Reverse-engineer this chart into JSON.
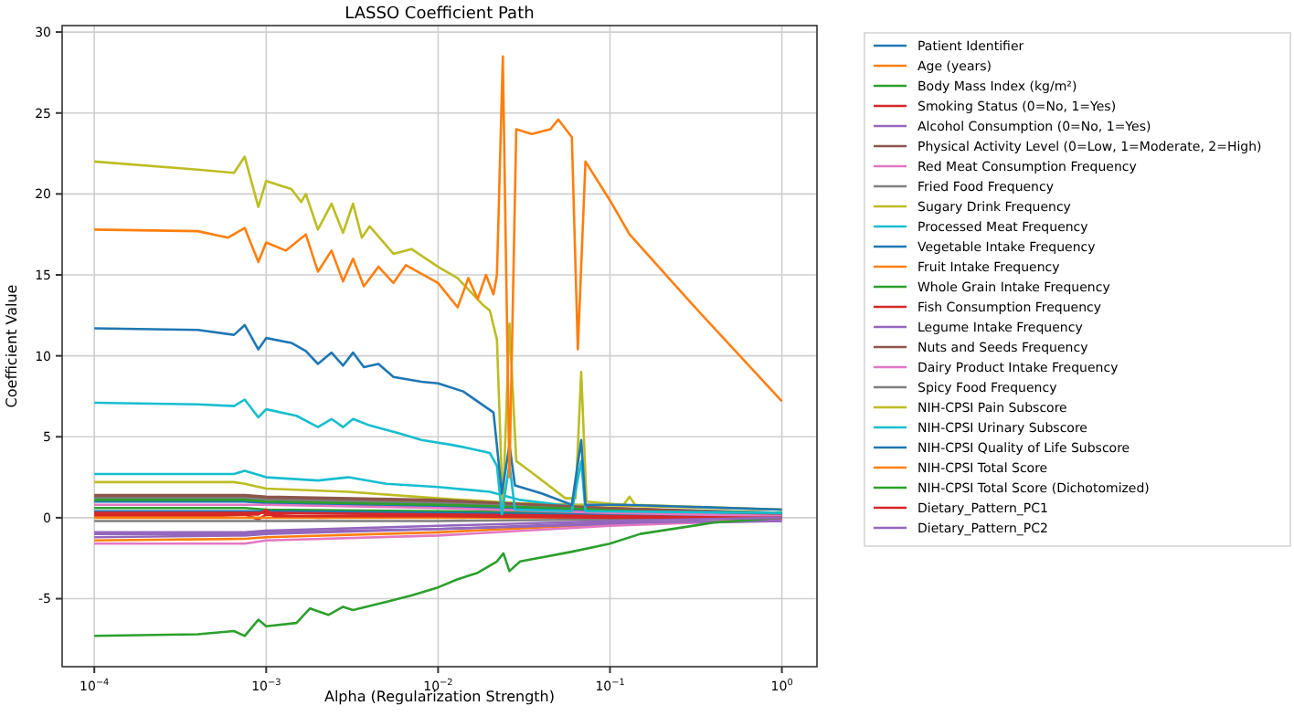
{
  "chart_data": {
    "type": "line",
    "title": "LASSO Coefficient Path",
    "xlabel": "Alpha (Regularization Strength)",
    "ylabel": "Coefficient Value",
    "log": "x",
    "grid": true,
    "legend": "right",
    "xlim": [
      6.5e-05,
      1.6
    ],
    "ylim": [
      -9.2,
      30.4
    ],
    "xticks": [
      {
        "value": 0.0001,
        "label": "10$^{−4}$"
      },
      {
        "value": 0.001,
        "label": "10$^{−3}$"
      },
      {
        "value": 0.01,
        "label": "10$^{−2}$"
      },
      {
        "value": 0.1,
        "label": "10$^{−1}$"
      },
      {
        "value": 1,
        "label": "10$^{0}$"
      }
    ],
    "yticks": [
      -5,
      0,
      5,
      10,
      15,
      20,
      25,
      30
    ],
    "series": [
      {
        "name": "Patient Identifier",
        "color": "#1f77b4",
        "x": [
          0.0001,
          0.00075,
          0.001,
          0.01,
          0.1,
          1
        ],
        "values": [
          1.0,
          1.0,
          0.9,
          0.7,
          0.4,
          0.3
        ]
      },
      {
        "name": "Age (years)",
        "color": "#ff7f0e",
        "x": [
          0.0001,
          0.00075,
          0.001,
          0.01,
          0.1,
          1
        ],
        "values": [
          -1.4,
          -1.3,
          -1.2,
          -0.9,
          -0.4,
          -0.1
        ]
      },
      {
        "name": "Body Mass Index (kg/m²)",
        "color": "#2ca02c",
        "x": [
          0.0001,
          0.00075,
          0.001,
          0.01,
          0.1,
          1
        ],
        "values": [
          0.6,
          0.6,
          0.5,
          0.4,
          0.3,
          0.2
        ]
      },
      {
        "name": "Smoking Status (0=No, 1=Yes)",
        "color": "#d62728",
        "x": [
          0.0001,
          0.0005,
          0.00075,
          0.0009,
          0.001,
          0.002,
          0.01,
          0.1,
          1
        ],
        "values": [
          0.1,
          0.1,
          0.2,
          -0.1,
          0.2,
          0.0,
          0.1,
          0.0,
          0.0
        ]
      },
      {
        "name": "Alcohol Consumption (0=No, 1=Yes)",
        "color": "#9467bd",
        "x": [
          0.0001,
          0.00075,
          0.001,
          0.01,
          0.1,
          1
        ],
        "values": [
          -1.0,
          -1.0,
          -0.9,
          -0.7,
          -0.4,
          -0.2
        ]
      },
      {
        "name": "Physical Activity Level (0=Low, 1=Moderate, 2=High)",
        "color": "#8c564b",
        "x": [
          0.0001,
          0.00075,
          0.001,
          0.01,
          0.1,
          1
        ],
        "values": [
          1.3,
          1.3,
          1.2,
          1.0,
          0.6,
          0.3
        ]
      },
      {
        "name": "Red Meat Consumption Frequency",
        "color": "#e377c2",
        "x": [
          0.0001,
          0.00075,
          0.001,
          0.01,
          0.1,
          1
        ],
        "values": [
          -1.6,
          -1.6,
          -1.4,
          -1.1,
          -0.5,
          -0.1
        ]
      },
      {
        "name": "Fried Food Frequency",
        "color": "#7f7f7f",
        "x": [
          0.0001,
          0.00075,
          0.001,
          0.01,
          0.1,
          1
        ],
        "values": [
          1.2,
          1.2,
          1.1,
          0.9,
          0.5,
          0.2
        ]
      },
      {
        "name": "Sugary Drink Frequency",
        "color": "#bcbd22",
        "x": [
          0.0001,
          0.00065,
          0.00075,
          0.001,
          0.003,
          0.01,
          0.03,
          1
        ],
        "values": [
          2.2,
          2.2,
          2.1,
          1.8,
          1.6,
          1.2,
          0.9,
          0.5
        ]
      },
      {
        "name": "Processed Meat Frequency",
        "color": "#17becf",
        "x": [
          0.0001,
          0.00065,
          0.00075,
          0.001,
          0.002,
          0.003,
          0.005,
          0.01,
          0.02,
          0.03,
          0.1,
          1
        ],
        "values": [
          2.7,
          2.7,
          2.9,
          2.5,
          2.3,
          2.5,
          2.1,
          1.9,
          1.6,
          1.1,
          0.4,
          0.2
        ]
      },
      {
        "name": "Vegetable Intake Frequency",
        "color": "#1f77b4",
        "x": [
          0.0001,
          0.001,
          0.01,
          0.1,
          1
        ],
        "values": [
          0.4,
          0.4,
          0.3,
          0.2,
          0.1
        ]
      },
      {
        "name": "Fruit Intake Frequency",
        "color": "#ff7f0e",
        "x": [
          0.0001,
          0.001,
          0.01,
          0.1,
          1
        ],
        "values": [
          0.0,
          0.0,
          0.0,
          0.0,
          0.0
        ]
      },
      {
        "name": "Whole Grain Intake Frequency",
        "color": "#2ca02c",
        "x": [
          0.0001,
          0.00075,
          0.001,
          0.01,
          0.1,
          1
        ],
        "values": [
          1.1,
          1.1,
          1.0,
          0.8,
          0.5,
          0.3
        ]
      },
      {
        "name": "Fish Consumption Frequency",
        "color": "#d62728",
        "x": [
          0.0001,
          0.001,
          0.01,
          0.1,
          1
        ],
        "values": [
          0.3,
          0.3,
          0.2,
          0.1,
          0.0
        ]
      },
      {
        "name": "Legume Intake Frequency",
        "color": "#9467bd",
        "x": [
          0.0001,
          0.00075,
          0.001,
          0.01,
          0.1,
          1
        ],
        "values": [
          -1.2,
          -1.1,
          -1.0,
          -0.7,
          -0.3,
          -0.2
        ]
      },
      {
        "name": "Nuts and Seeds Frequency",
        "color": "#8c564b",
        "x": [
          0.0001,
          0.00075,
          0.001,
          0.01,
          0.1,
          1
        ],
        "values": [
          1.4,
          1.4,
          1.3,
          1.1,
          0.6,
          0.2
        ]
      },
      {
        "name": "Dairy Product Intake Frequency",
        "color": "#e377c2",
        "x": [
          0.0001,
          0.001,
          0.01,
          0.1,
          1
        ],
        "values": [
          0.8,
          0.8,
          0.6,
          0.3,
          0.1
        ]
      },
      {
        "name": "Spicy Food Frequency",
        "color": "#7f7f7f",
        "x": [
          0.0001,
          0.001,
          0.01,
          0.1,
          1
        ],
        "values": [
          -0.2,
          -0.2,
          -0.2,
          -0.1,
          0.0
        ]
      },
      {
        "name": "NIH-CPSI Pain Subscore",
        "color": "#bcbd22",
        "x": [
          0.0001,
          0.0004,
          0.00065,
          0.00075,
          0.0009,
          0.001,
          0.0014,
          0.0016,
          0.0017,
          0.002,
          0.0024,
          0.0028,
          0.0032,
          0.0036,
          0.004,
          0.0055,
          0.007,
          0.01,
          0.013,
          0.018,
          0.02,
          0.022,
          0.0238,
          0.026,
          0.0285,
          0.035,
          0.055,
          0.063,
          0.068,
          0.073,
          0.12,
          0.13,
          0.14,
          1
        ],
        "values": [
          22,
          21.5,
          21.3,
          22.3,
          19.2,
          20.8,
          20.3,
          19.5,
          20,
          17.8,
          19.4,
          17.6,
          19.4,
          17.3,
          18,
          16.3,
          16.6,
          15.5,
          14.8,
          13.2,
          12.8,
          11,
          0.5,
          12,
          3.5,
          2.8,
          1.2,
          1.2,
          9,
          1,
          0.8,
          1.3,
          0.8,
          0.5
        ]
      },
      {
        "name": "NIH-CPSI Urinary Subscore",
        "color": "#17becf",
        "x": [
          0.0001,
          0.0004,
          0.00065,
          0.00075,
          0.0009,
          0.001,
          0.0015,
          0.002,
          0.0024,
          0.0028,
          0.0032,
          0.004,
          0.006,
          0.008,
          0.012,
          0.015,
          0.02,
          0.022,
          0.0235,
          0.026,
          0.028,
          0.06,
          0.068,
          0.072,
          1
        ],
        "values": [
          7.1,
          7.0,
          6.9,
          7.3,
          6.2,
          6.7,
          6.3,
          5.6,
          6.1,
          5.6,
          6.1,
          5.7,
          5.2,
          4.8,
          4.5,
          4.3,
          4,
          3.2,
          0.2,
          3.3,
          0.5,
          0.4,
          3.5,
          0.4,
          0.3
        ]
      },
      {
        "name": "NIH-CPSI Quality of Life Subscore",
        "color": "#1f77b4",
        "x": [
          0.0001,
          0.0004,
          0.00065,
          0.00075,
          0.0009,
          0.001,
          0.0014,
          0.0017,
          0.002,
          0.0024,
          0.0028,
          0.0032,
          0.0037,
          0.0045,
          0.0055,
          0.008,
          0.01,
          0.014,
          0.018,
          0.021,
          0.0235,
          0.026,
          0.028,
          0.04,
          0.06,
          0.068,
          0.072,
          0.12,
          1
        ],
        "values": [
          11.7,
          11.6,
          11.3,
          11.9,
          10.4,
          11.1,
          10.8,
          10.3,
          9.5,
          10.2,
          9.4,
          10.2,
          9.3,
          9.5,
          8.7,
          8.4,
          8.3,
          7.8,
          7,
          6.5,
          1.5,
          4.5,
          2,
          1.5,
          0.8,
          4.8,
          0.8,
          0.8,
          0.5
        ]
      },
      {
        "name": "NIH-CPSI Total Score",
        "color": "#ff7f0e",
        "x": [
          0.0001,
          0.0004,
          0.0006,
          0.00075,
          0.0009,
          0.001,
          0.0013,
          0.0017,
          0.002,
          0.0024,
          0.0028,
          0.0032,
          0.0037,
          0.0045,
          0.0055,
          0.0065,
          0.01,
          0.013,
          0.015,
          0.017,
          0.019,
          0.021,
          0.022,
          0.0238,
          0.026,
          0.0285,
          0.035,
          0.045,
          0.05,
          0.06,
          0.065,
          0.072,
          0.1,
          0.13,
          0.3,
          1
        ],
        "values": [
          17.8,
          17.7,
          17.3,
          17.9,
          15.8,
          17,
          16.5,
          17.5,
          15.2,
          16.5,
          14.6,
          16,
          14.3,
          15.5,
          14.5,
          15.6,
          14.5,
          13,
          14.8,
          13.5,
          15,
          13.8,
          15,
          28.5,
          2.5,
          24,
          23.7,
          24,
          24.6,
          23.5,
          10.4,
          22,
          19.6,
          17.5,
          13.2,
          7.2
        ]
      },
      {
        "name": "NIH-CPSI Total Score (Dichotomized)",
        "color": "#2ca02c",
        "x": [
          0.0001,
          0.0004,
          0.00065,
          0.00075,
          0.0009,
          0.001,
          0.0015,
          0.0018,
          0.0023,
          0.0028,
          0.0032,
          0.005,
          0.007,
          0.01,
          0.013,
          0.017,
          0.022,
          0.024,
          0.026,
          0.03,
          0.06,
          0.1,
          0.15,
          0.4,
          1
        ],
        "values": [
          -7.3,
          -7.2,
          -7.0,
          -7.3,
          -6.3,
          -6.7,
          -6.5,
          -5.6,
          -6,
          -5.5,
          -5.7,
          -5.2,
          -4.8,
          -4.3,
          -3.8,
          -3.4,
          -2.7,
          -2.2,
          -3.3,
          -2.7,
          -2.1,
          -1.6,
          -1,
          -0.3,
          0
        ]
      },
      {
        "name": "Dietary_Pattern_PC1",
        "color": "#d62728",
        "x": [
          0.0001,
          0.0009,
          0.001,
          0.0011,
          0.01,
          0.1,
          1
        ],
        "values": [
          0.2,
          0.2,
          0.5,
          0.1,
          0.1,
          0.0,
          0.0
        ]
      },
      {
        "name": "Dietary_Pattern_PC2",
        "color": "#9467bd",
        "x": [
          0.0001,
          0.00075,
          0.001,
          0.01,
          0.1,
          1
        ],
        "values": [
          -0.9,
          -0.9,
          -0.8,
          -0.5,
          -0.2,
          0.0
        ]
      }
    ]
  }
}
